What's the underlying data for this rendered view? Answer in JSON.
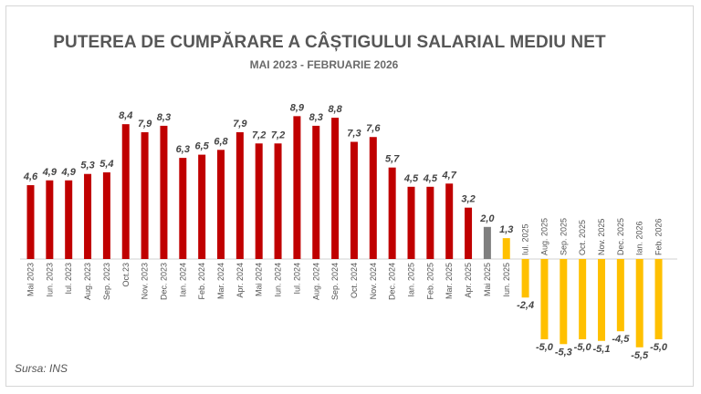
{
  "title": "PUTEREA DE CUMPĂRARE A CÂȘTIGULUI SALARIAL MEDIU NET",
  "subtitle": "MAI 2023 - FEBRUARIE 2026",
  "source": "Sursa: INS",
  "colors": {
    "positive": "#c00000",
    "highlight": "#7f7f7f",
    "latest": "#ffc000",
    "negative": "#ffc000",
    "axis": "#d0d0d0"
  },
  "chart_data": {
    "type": "bar",
    "title": "PUTEREA DE CUMPĂRARE A CÂȘTIGULUI SALARIAL MEDIU NET",
    "subtitle": "MAI 2023 - FEBRUARIE 2026",
    "xlabel": "",
    "ylabel": "",
    "grid": false,
    "legend": "none",
    "categories": [
      "Mai 2023",
      "Iun. 2023",
      "Iul. 2023",
      "Aug. 2023",
      "Sep. 2023",
      "Oct.23",
      "Nov. 2023",
      "Dec. 2023",
      "Ian. 2024",
      "Feb. 2024",
      "Mar. 2024",
      "Apr. 2024",
      "Mai 2024",
      "Iun. 2024",
      "Iul. 2024",
      "Aug. 2024",
      "Sep. 2024",
      "Oct. 2024",
      "Nov. 2024",
      "Dec. 2024",
      "Ian. 2025",
      "Feb. 2025",
      "Mar. 2025",
      "Apr. 2025",
      "Mai 2025",
      "Iun. 2025",
      "Iul. 2025",
      "Aug. 2025",
      "Sep. 2025",
      "Oct. 2025",
      "Nov. 2025",
      "Dec. 2025",
      "Ian. 2026",
      "Feb. 2026"
    ],
    "values": [
      4.6,
      4.9,
      4.9,
      5.3,
      5.4,
      8.4,
      7.9,
      8.3,
      6.3,
      6.5,
      6.8,
      7.9,
      7.2,
      7.2,
      8.9,
      8.3,
      8.8,
      7.3,
      7.6,
      5.7,
      4.5,
      4.5,
      4.7,
      3.2,
      2.0,
      1.3,
      -2.4,
      -5.0,
      -5.3,
      -5.0,
      -5.1,
      -4.5,
      -5.5,
      -5.0
    ],
    "value_labels": [
      "4,6",
      "4,9",
      "4,9",
      "5,3",
      "5,4",
      "8,4",
      "7,9",
      "8,3",
      "6,3",
      "6,5",
      "6,8",
      "7,9",
      "7,2",
      "7,2",
      "8,9",
      "8,3",
      "8,8",
      "7,3",
      "7,6",
      "5,7",
      "4,5",
      "4,5",
      "4,7",
      "3,2",
      "2,0",
      "1,3",
      "-2,4",
      "-5,0",
      "-5,3",
      "-5,0",
      "-5,1",
      "-4,5",
      "-5,5",
      "-5,0"
    ],
    "bar_colors": [
      "positive",
      "positive",
      "positive",
      "positive",
      "positive",
      "positive",
      "positive",
      "positive",
      "positive",
      "positive",
      "positive",
      "positive",
      "positive",
      "positive",
      "positive",
      "positive",
      "positive",
      "positive",
      "positive",
      "positive",
      "positive",
      "positive",
      "positive",
      "positive",
      "highlight",
      "latest",
      "negative",
      "negative",
      "negative",
      "negative",
      "negative",
      "negative",
      "negative",
      "negative"
    ]
  }
}
